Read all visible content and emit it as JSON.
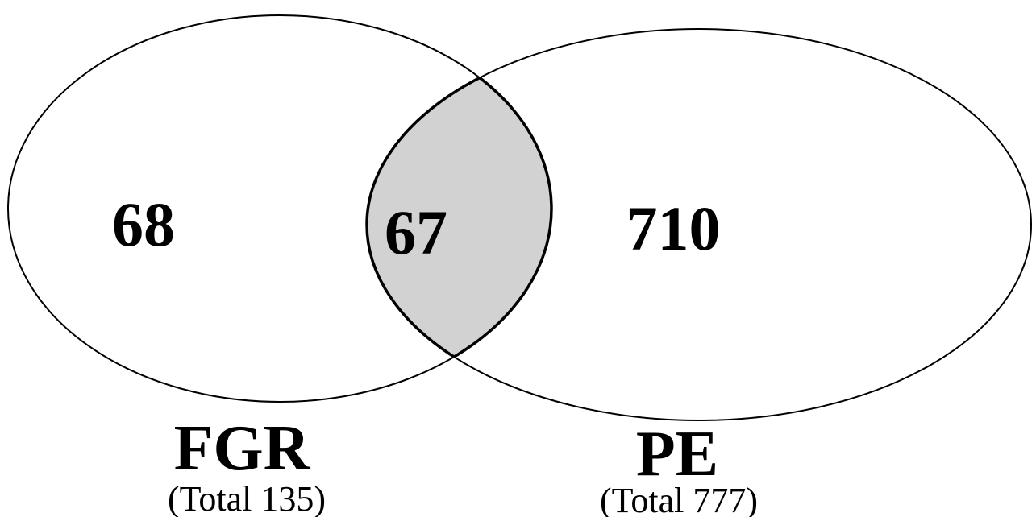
{
  "sets": [
    {
      "id": "fgr",
      "name": "FGR",
      "total_label": "(Total 135)",
      "total": 135,
      "unique_count": "68"
    },
    {
      "id": "pe",
      "name": "PE",
      "total_label": "(Total 777)",
      "total": 777,
      "unique_count": "710"
    }
  ],
  "intersection": {
    "count": "67",
    "fill_color": "#d3d2d3"
  },
  "colors": {
    "outline": "#000000",
    "background": "#ffffff"
  }
}
